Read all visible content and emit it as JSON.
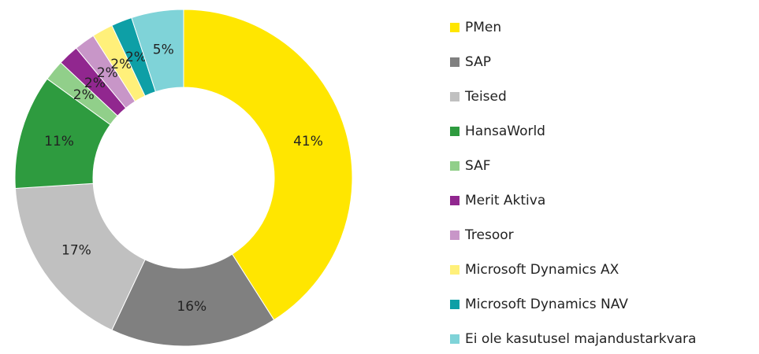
{
  "chart_data": {
    "type": "donut",
    "categories": [
      "PMen",
      "SAP",
      "Teised",
      "HansaWorld",
      "SAF",
      "Merit Aktiva",
      "Tresoor",
      "Microsoft Dynamics AX",
      "Microsoft Dynamics NAV",
      "Ei ole kasutusel majandustarkvara"
    ],
    "values": [
      41,
      16,
      17,
      11,
      2,
      2,
      2,
      2,
      2,
      5
    ],
    "value_labels": [
      "41%",
      "16%",
      "17%",
      "11%",
      "2%",
      "2%",
      "2%",
      "2%",
      "2%",
      "5%"
    ],
    "colors": [
      "#FFE600",
      "#808080",
      "#C0C0C0",
      "#2E9B3F",
      "#91CF8A",
      "#91278F",
      "#C896C8",
      "#FFF07A",
      "#0E9FA6",
      "#7FD3D8"
    ],
    "legend": "right"
  }
}
